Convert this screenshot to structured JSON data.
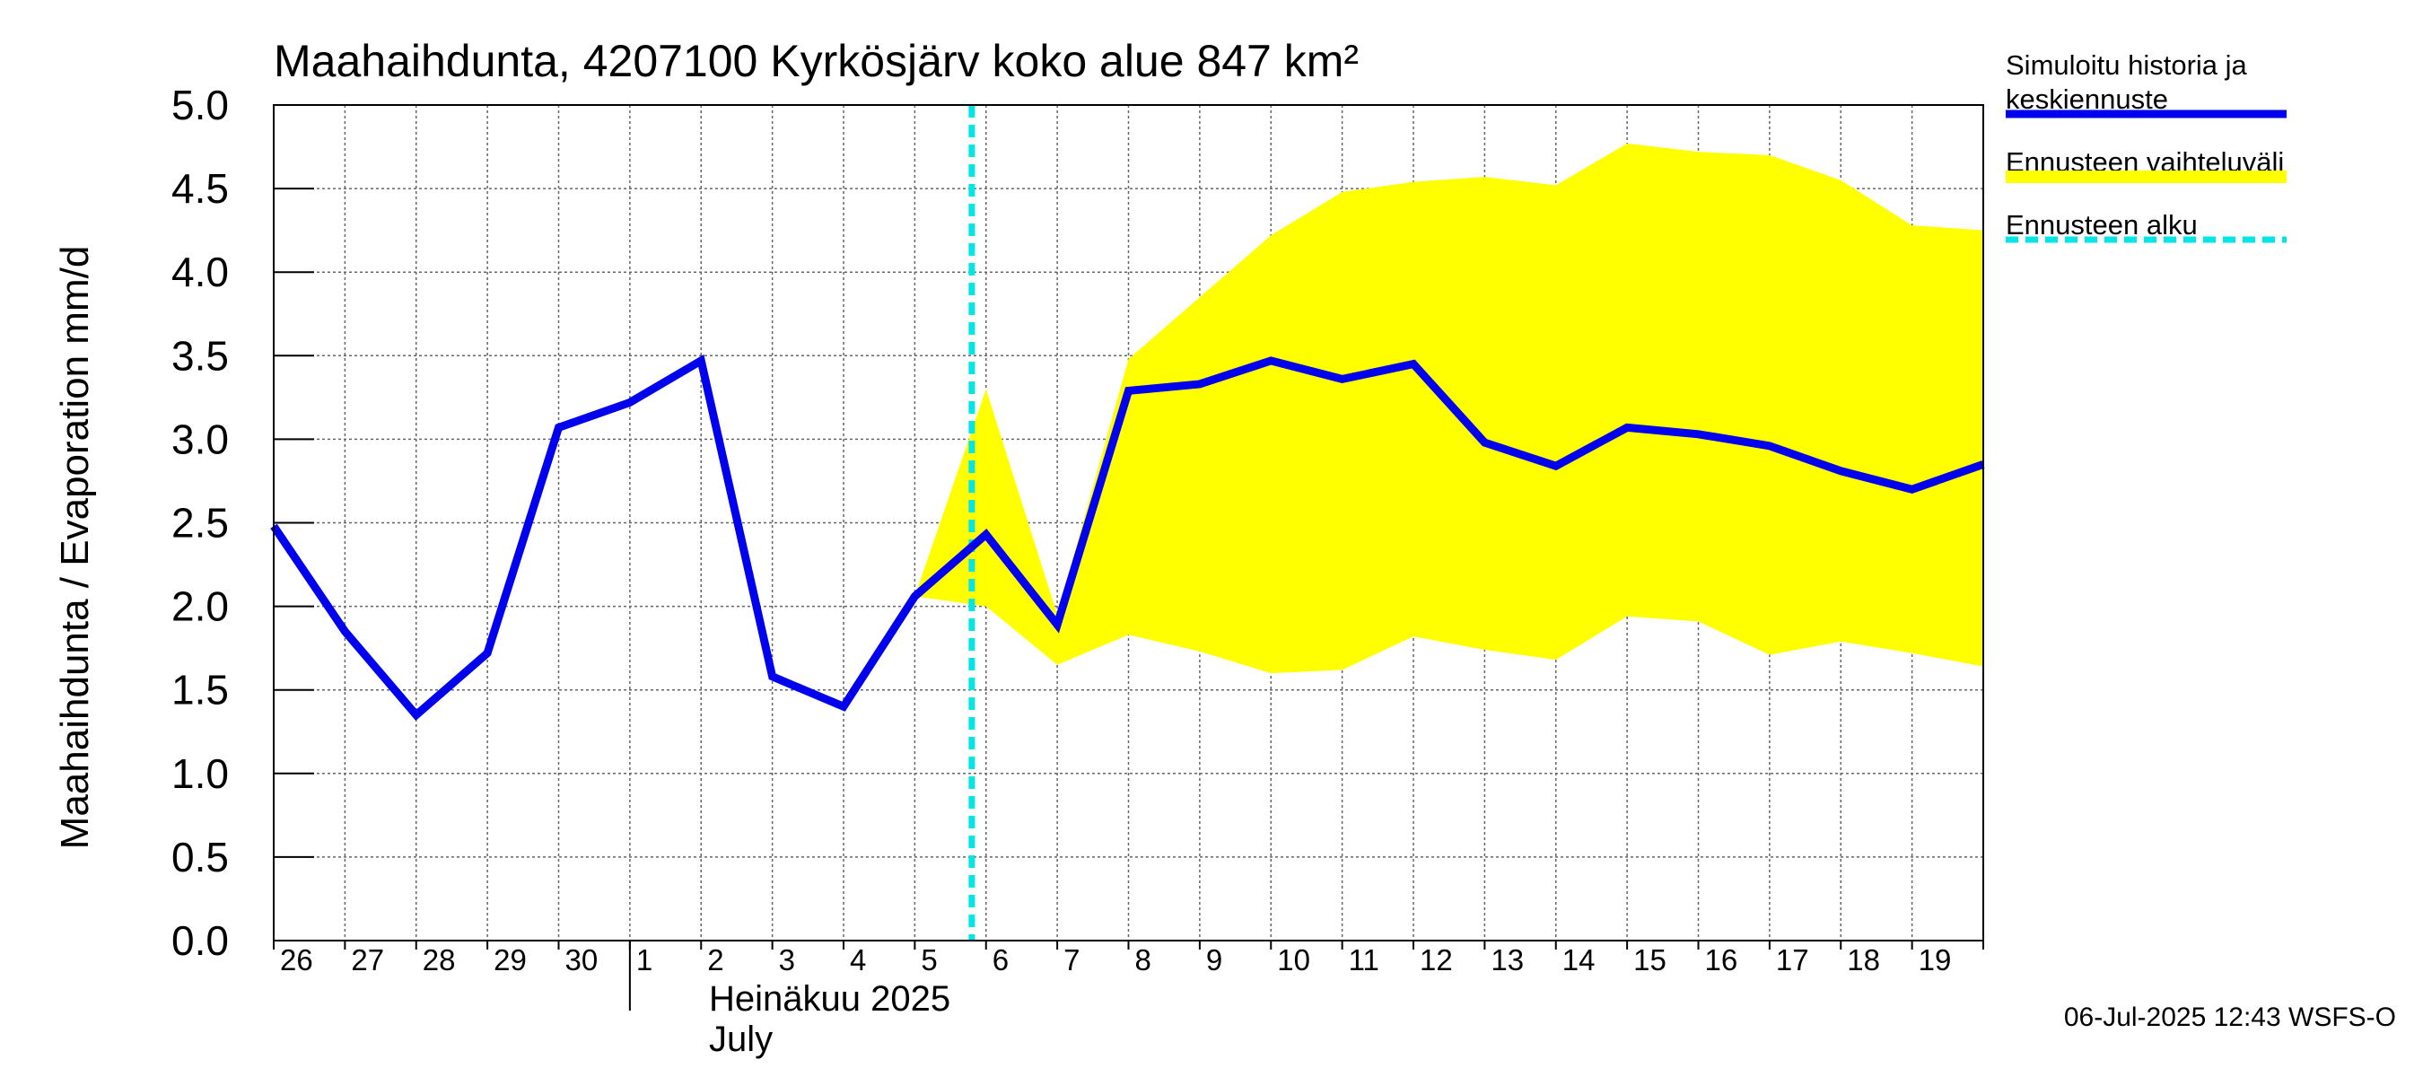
{
  "chart_data": {
    "type": "line",
    "title": "Maahaihdunta, 4207100 Kyrkösjärv koko alue 847 km²",
    "ylabel": "Maahaihdunta / Evaporation   mm/d",
    "ylim": [
      0,
      5
    ],
    "yticks": [
      "0.0",
      "0.5",
      "1.0",
      "1.5",
      "2.0",
      "2.5",
      "3.0",
      "3.5",
      "4.0",
      "4.5",
      "5.0"
    ],
    "x_tick_labels": [
      "26",
      "27",
      "28",
      "29",
      "30",
      "1",
      "2",
      "3",
      "4",
      "5",
      "6",
      "7",
      "8",
      "9",
      "10",
      "11",
      "12",
      "13",
      "14",
      "15",
      "16",
      "17",
      "18",
      "19"
    ],
    "month_label": [
      "Heinäkuu  2025",
      "July"
    ],
    "grid": true,
    "series": [
      {
        "name": "Simuloitu historia ja keskiennuste",
        "color": "#0000ee",
        "x": [
          "2025-06-26",
          "2025-06-27",
          "2025-06-28",
          "2025-06-29",
          "2025-06-30",
          "2025-07-01",
          "2025-07-02",
          "2025-07-03",
          "2025-07-04",
          "2025-07-05",
          "2025-07-06",
          "2025-07-07",
          "2025-07-08",
          "2025-07-09",
          "2025-07-10",
          "2025-07-11",
          "2025-07-12",
          "2025-07-13",
          "2025-07-14",
          "2025-07-15",
          "2025-07-16",
          "2025-07-17",
          "2025-07-18",
          "2025-07-19",
          "2025-07-20"
        ],
        "values": [
          2.48,
          1.85,
          1.35,
          1.72,
          3.07,
          3.22,
          3.47,
          1.58,
          1.4,
          2.06,
          2.43,
          1.89,
          3.29,
          3.33,
          3.47,
          3.36,
          3.45,
          2.98,
          2.84,
          3.07,
          3.03,
          2.96,
          2.81,
          2.7,
          2.85
        ]
      },
      {
        "name": "Ennusteen vaihteluväli",
        "color": "#ffff00",
        "x": [
          "2025-07-05",
          "2025-07-06",
          "2025-07-07",
          "2025-07-08",
          "2025-07-09",
          "2025-07-10",
          "2025-07-11",
          "2025-07-12",
          "2025-07-13",
          "2025-07-14",
          "2025-07-15",
          "2025-07-16",
          "2025-07-17",
          "2025-07-18",
          "2025-07-19",
          "2025-07-20"
        ],
        "upper": [
          2.06,
          3.3,
          1.95,
          3.48,
          3.85,
          4.22,
          4.48,
          4.54,
          4.57,
          4.52,
          4.77,
          4.72,
          4.7,
          4.55,
          4.28,
          4.25
        ],
        "lower": [
          2.06,
          2.0,
          1.65,
          1.83,
          1.73,
          1.6,
          1.62,
          1.82,
          1.74,
          1.68,
          1.94,
          1.91,
          1.71,
          1.79,
          1.72,
          1.64
        ]
      }
    ],
    "forecast_start": {
      "name": "Ennusteen alku",
      "x": "2025-07-06",
      "color": "#00e5e5"
    },
    "legend": {
      "placement": "right",
      "items": [
        {
          "label_lines": [
            "Simuloitu historia ja",
            "keskiennuste"
          ],
          "color": "#0000ee",
          "style": "solid"
        },
        {
          "label_lines": [
            "Ennusteen vaihteluväli"
          ],
          "color": "#ffff00",
          "style": "solid"
        },
        {
          "label_lines": [
            "Ennusteen alku"
          ],
          "color": "#00e5e5",
          "style": "dashed"
        }
      ]
    }
  },
  "footer": "06-Jul-2025 12:43 WSFS-O"
}
